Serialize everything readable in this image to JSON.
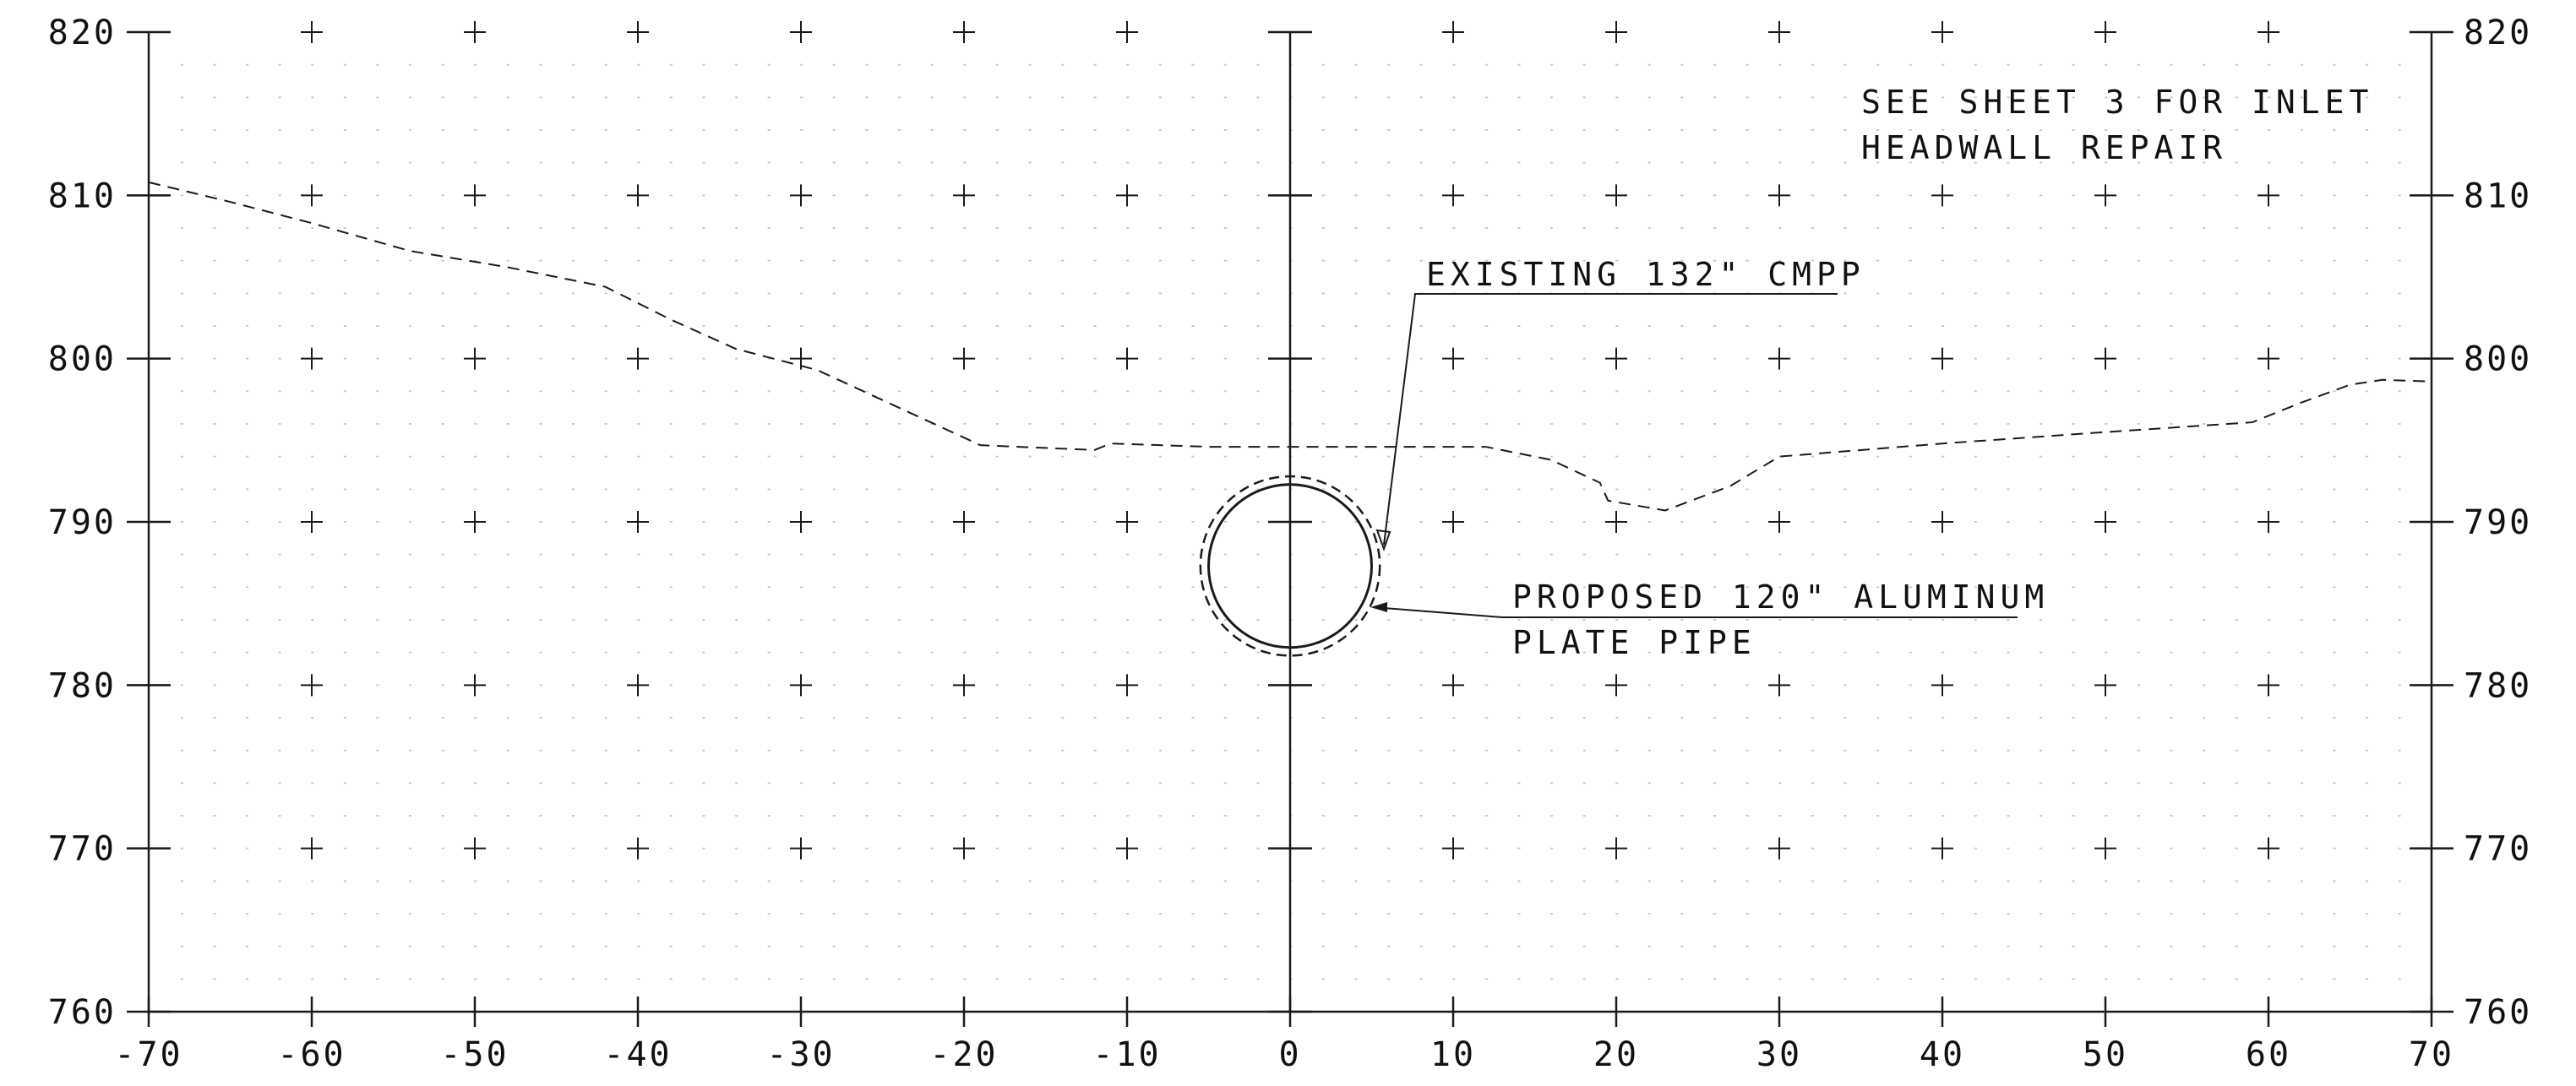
{
  "drawing": {
    "x_ticks": [
      "-70",
      "-60",
      "-50",
      "-40",
      "-30",
      "-20",
      "-10",
      "0",
      "10",
      "20",
      "30",
      "40",
      "50",
      "60",
      "70"
    ],
    "y_ticks_left": [
      "820",
      "810",
      "800",
      "790",
      "780",
      "770",
      "760"
    ],
    "y_ticks_right": [
      "820",
      "810",
      "800",
      "790",
      "780",
      "770",
      "760"
    ],
    "x_range": [
      -70,
      70
    ],
    "y_range": [
      760,
      820
    ],
    "grid": "cross markers every 10 ft, fine dot grid every 2 ft",
    "ground_profile": [
      [
        -70,
        810.8
      ],
      [
        -65,
        809.6
      ],
      [
        -60,
        808.3
      ],
      [
        -54,
        806.6
      ],
      [
        -48,
        805.6
      ],
      [
        -42,
        804.4
      ],
      [
        -38,
        802.4
      ],
      [
        -34,
        800.6
      ],
      [
        -29,
        799.3
      ],
      [
        -24,
        797.0
      ],
      [
        -19,
        794.7
      ],
      [
        -12,
        794.4
      ],
      [
        -11,
        794.8
      ],
      [
        -5,
        794.6
      ],
      [
        0,
        794.6
      ],
      [
        5,
        794.6
      ],
      [
        12,
        794.6
      ],
      [
        16,
        793.8
      ],
      [
        19,
        792.4
      ],
      [
        19.5,
        791.3
      ],
      [
        23,
        790.7
      ],
      [
        27,
        792.2
      ],
      [
        30,
        794.0
      ],
      [
        40,
        794.8
      ],
      [
        50,
        795.5
      ],
      [
        59,
        796.1
      ],
      [
        62,
        797.3
      ],
      [
        65,
        798.4
      ],
      [
        67,
        798.7
      ],
      [
        70,
        798.6
      ]
    ],
    "existing_pipe": {
      "center": [
        0,
        787.3
      ],
      "diameter_in": 132,
      "style": "dashed"
    },
    "proposed_pipe": {
      "center": [
        0,
        787.3
      ],
      "diameter_in": 120,
      "style": "solid"
    },
    "notes": {
      "inlet_line1": "SEE SHEET 3 FOR INLET",
      "inlet_line2": "HEADWALL REPAIR",
      "existing_label": "EXISTING 132\" CMPP",
      "proposed_line1": "PROPOSED 120\" ALUMINUM",
      "proposed_line2": "PLATE PIPE"
    },
    "colors": {
      "lines": "#1a1a1a",
      "dot_grid": "#c8c8c8",
      "background": "#ffffff"
    }
  }
}
